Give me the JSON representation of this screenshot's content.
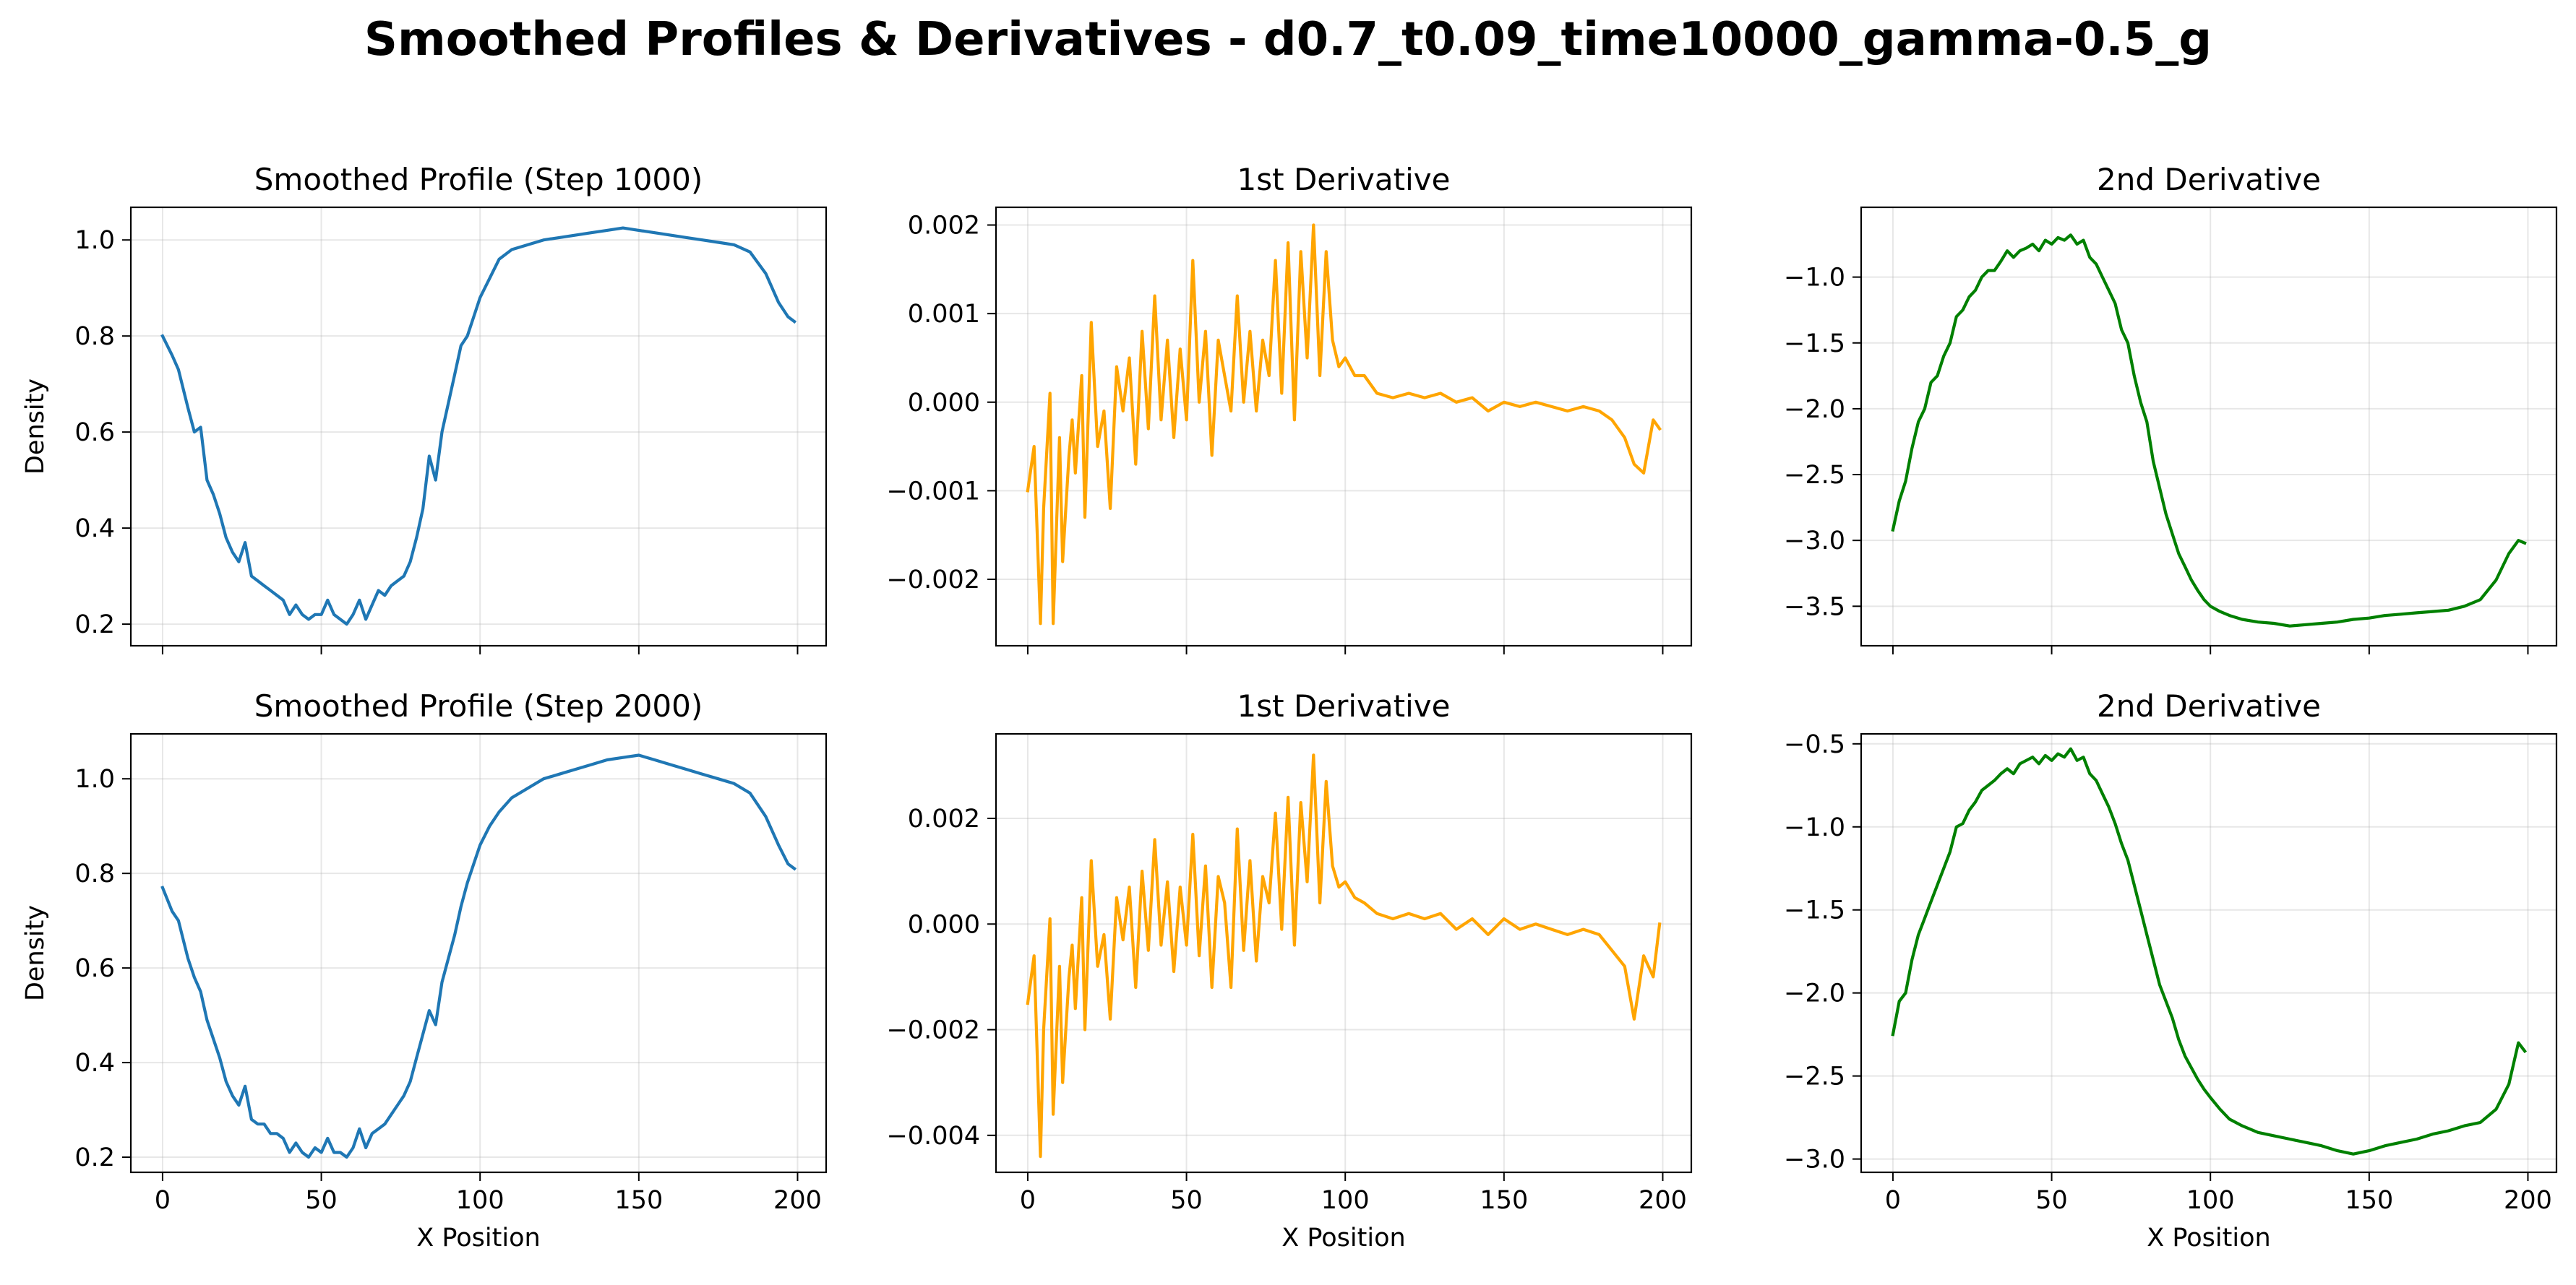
{
  "figure": {
    "suptitle": "Smoothed Profiles & Derivatives - d0.7_t0.09_time10000_gamma-0.5_g"
  },
  "chart_data": [
    {
      "type": "line",
      "title": "Smoothed Profile (Step 1000)",
      "xlabel": "",
      "ylabel": "Density",
      "xlim": [
        -10,
        209
      ],
      "ylim": [
        0.155,
        1.068
      ],
      "xticks": [
        0,
        50,
        100,
        150,
        200
      ],
      "yticks": [
        0.2,
        0.4,
        0.6,
        0.8,
        1.0
      ],
      "ytick_labels": [
        "0.2",
        "0.4",
        "0.6",
        "0.8",
        "1.0"
      ],
      "show_xtick_labels": false,
      "grid": true,
      "color": "#1f77b4",
      "x": [
        0,
        3,
        5,
        8,
        10,
        12,
        14,
        16,
        18,
        20,
        22,
        24,
        26,
        28,
        30,
        32,
        34,
        36,
        38,
        40,
        42,
        44,
        46,
        48,
        50,
        52,
        54,
        56,
        58,
        60,
        62,
        64,
        66,
        68,
        70,
        72,
        74,
        76,
        78,
        80,
        82,
        84,
        86,
        88,
        90,
        92,
        94,
        96,
        98,
        100,
        103,
        106,
        110,
        115,
        120,
        125,
        130,
        135,
        140,
        145,
        150,
        155,
        160,
        165,
        170,
        175,
        180,
        185,
        190,
        194,
        197,
        199
      ],
      "y": [
        0.8,
        0.76,
        0.73,
        0.65,
        0.6,
        0.61,
        0.5,
        0.47,
        0.43,
        0.38,
        0.35,
        0.33,
        0.37,
        0.3,
        0.29,
        0.28,
        0.27,
        0.26,
        0.25,
        0.22,
        0.24,
        0.22,
        0.21,
        0.22,
        0.22,
        0.25,
        0.22,
        0.21,
        0.2,
        0.22,
        0.25,
        0.21,
        0.24,
        0.27,
        0.26,
        0.28,
        0.29,
        0.3,
        0.33,
        0.38,
        0.44,
        0.55,
        0.5,
        0.6,
        0.66,
        0.72,
        0.78,
        0.8,
        0.84,
        0.88,
        0.92,
        0.96,
        0.98,
        0.99,
        1.0,
        1.005,
        1.01,
        1.015,
        1.02,
        1.025,
        1.02,
        1.015,
        1.01,
        1.005,
        1.0,
        0.995,
        0.99,
        0.975,
        0.93,
        0.87,
        0.84,
        0.83
      ]
    },
    {
      "type": "line",
      "title": "1st Derivative",
      "xlabel": "",
      "ylabel": "",
      "xlim": [
        -10,
        209
      ],
      "ylim": [
        -0.00275,
        0.0022
      ],
      "xticks": [
        0,
        50,
        100,
        150,
        200
      ],
      "yticks": [
        -0.002,
        -0.001,
        0.0,
        0.001,
        0.002
      ],
      "ytick_labels": [
        "−0.002",
        "−0.001",
        "0.000",
        "0.001",
        "0.002"
      ],
      "show_xtick_labels": false,
      "grid": true,
      "color": "#ffa500",
      "x": [
        0,
        2,
        4,
        5,
        7,
        8,
        10,
        11,
        13,
        14,
        15,
        17,
        18,
        20,
        22,
        24,
        26,
        28,
        30,
        32,
        34,
        36,
        38,
        40,
        42,
        44,
        46,
        48,
        50,
        52,
        54,
        56,
        58,
        60,
        62,
        64,
        66,
        68,
        70,
        72,
        74,
        76,
        78,
        80,
        82,
        84,
        86,
        88,
        90,
        92,
        94,
        96,
        98,
        100,
        103,
        106,
        110,
        115,
        120,
        125,
        130,
        135,
        140,
        145,
        150,
        155,
        160,
        165,
        170,
        175,
        180,
        184,
        188,
        191,
        194,
        197,
        199
      ],
      "y": [
        -0.001,
        -0.0005,
        -0.0025,
        -0.0012,
        0.0001,
        -0.0025,
        -0.0004,
        -0.0018,
        -0.0006,
        -0.0002,
        -0.0008,
        0.0003,
        -0.0013,
        0.0009,
        -0.0005,
        -0.0001,
        -0.0012,
        0.0004,
        -0.0001,
        0.0005,
        -0.0007,
        0.0008,
        -0.0003,
        0.0012,
        -0.0002,
        0.0007,
        -0.0004,
        0.0006,
        -0.0002,
        0.0016,
        0.0,
        0.0008,
        -0.0006,
        0.0007,
        0.0003,
        -0.0001,
        0.0012,
        0.0,
        0.0008,
        -0.0001,
        0.0007,
        0.0003,
        0.0016,
        0.0001,
        0.0018,
        -0.0002,
        0.0017,
        0.0005,
        0.002,
        0.0003,
        0.0017,
        0.0007,
        0.0004,
        0.0005,
        0.0003,
        0.0003,
        0.0001,
        5e-05,
        0.0001,
        5e-05,
        0.0001,
        0.0,
        5e-05,
        -0.0001,
        0.0,
        -5e-05,
        0.0,
        -5e-05,
        -0.0001,
        -5e-05,
        -0.0001,
        -0.0002,
        -0.0004,
        -0.0007,
        -0.0008,
        -0.0002,
        -0.0003
      ]
    },
    {
      "type": "line",
      "title": "2nd Derivative",
      "xlabel": "",
      "ylabel": "",
      "xlim": [
        -10,
        209
      ],
      "ylim": [
        -3.8,
        -0.47
      ],
      "xticks": [
        0,
        50,
        100,
        150,
        200
      ],
      "yticks": [
        -3.5,
        -3.0,
        -2.5,
        -2.0,
        -1.5,
        -1.0
      ],
      "ytick_labels": [
        "−3.5",
        "−3.0",
        "−2.5",
        "−2.0",
        "−1.5",
        "−1.0"
      ],
      "show_xtick_labels": false,
      "grid": true,
      "color": "#008000",
      "x": [
        0,
        2,
        4,
        6,
        8,
        10,
        12,
        14,
        16,
        18,
        20,
        22,
        24,
        26,
        28,
        30,
        32,
        34,
        36,
        38,
        40,
        42,
        44,
        46,
        48,
        50,
        52,
        54,
        56,
        58,
        60,
        62,
        64,
        66,
        68,
        70,
        72,
        74,
        76,
        78,
        80,
        82,
        84,
        86,
        88,
        90,
        92,
        94,
        96,
        98,
        100,
        103,
        106,
        110,
        115,
        120,
        125,
        130,
        135,
        140,
        145,
        150,
        155,
        160,
        165,
        170,
        175,
        180,
        185,
        190,
        194,
        197,
        199
      ],
      "y": [
        -2.92,
        -2.7,
        -2.55,
        -2.3,
        -2.1,
        -2.0,
        -1.8,
        -1.75,
        -1.6,
        -1.5,
        -1.3,
        -1.25,
        -1.15,
        -1.1,
        -1.0,
        -0.95,
        -0.95,
        -0.88,
        -0.8,
        -0.85,
        -0.8,
        -0.78,
        -0.75,
        -0.8,
        -0.72,
        -0.75,
        -0.7,
        -0.72,
        -0.68,
        -0.75,
        -0.72,
        -0.85,
        -0.9,
        -1.0,
        -1.1,
        -1.2,
        -1.4,
        -1.5,
        -1.75,
        -1.95,
        -2.1,
        -2.4,
        -2.6,
        -2.8,
        -2.95,
        -3.1,
        -3.2,
        -3.3,
        -3.38,
        -3.45,
        -3.5,
        -3.54,
        -3.57,
        -3.6,
        -3.62,
        -3.63,
        -3.65,
        -3.64,
        -3.63,
        -3.62,
        -3.6,
        -3.59,
        -3.57,
        -3.56,
        -3.55,
        -3.54,
        -3.53,
        -3.5,
        -3.45,
        -3.3,
        -3.1,
        -3.0,
        -3.02
      ]
    },
    {
      "type": "line",
      "title": "Smoothed Profile (Step 2000)",
      "xlabel": "X Position",
      "ylabel": "Density",
      "xlim": [
        -10,
        209
      ],
      "ylim": [
        0.168,
        1.095
      ],
      "xticks": [
        0,
        50,
        100,
        150,
        200
      ],
      "yticks": [
        0.2,
        0.4,
        0.6,
        0.8,
        1.0
      ],
      "ytick_labels": [
        "0.2",
        "0.4",
        "0.6",
        "0.8",
        "1.0"
      ],
      "show_xtick_labels": true,
      "grid": true,
      "color": "#1f77b4",
      "x": [
        0,
        3,
        5,
        8,
        10,
        12,
        14,
        16,
        18,
        20,
        22,
        24,
        26,
        28,
        30,
        32,
        34,
        36,
        38,
        40,
        42,
        44,
        46,
        48,
        50,
        52,
        54,
        56,
        58,
        60,
        62,
        64,
        66,
        68,
        70,
        72,
        74,
        76,
        78,
        80,
        82,
        84,
        86,
        88,
        90,
        92,
        94,
        96,
        98,
        100,
        103,
        106,
        110,
        115,
        120,
        125,
        130,
        135,
        140,
        145,
        150,
        155,
        160,
        165,
        170,
        175,
        180,
        185,
        190,
        194,
        197,
        199
      ],
      "y": [
        0.77,
        0.72,
        0.7,
        0.62,
        0.58,
        0.55,
        0.49,
        0.45,
        0.41,
        0.36,
        0.33,
        0.31,
        0.35,
        0.28,
        0.27,
        0.27,
        0.25,
        0.25,
        0.24,
        0.21,
        0.23,
        0.21,
        0.2,
        0.22,
        0.21,
        0.24,
        0.21,
        0.21,
        0.2,
        0.22,
        0.26,
        0.22,
        0.25,
        0.26,
        0.27,
        0.29,
        0.31,
        0.33,
        0.36,
        0.41,
        0.46,
        0.51,
        0.48,
        0.57,
        0.62,
        0.67,
        0.73,
        0.78,
        0.82,
        0.86,
        0.9,
        0.93,
        0.96,
        0.98,
        1.0,
        1.01,
        1.02,
        1.03,
        1.04,
        1.045,
        1.05,
        1.04,
        1.03,
        1.02,
        1.01,
        1.0,
        0.99,
        0.97,
        0.92,
        0.86,
        0.82,
        0.81
      ]
    },
    {
      "type": "line",
      "title": "1st Derivative",
      "xlabel": "X Position",
      "ylabel": "",
      "xlim": [
        -10,
        209
      ],
      "ylim": [
        -0.0047,
        0.0036
      ],
      "xticks": [
        0,
        50,
        100,
        150,
        200
      ],
      "yticks": [
        -0.004,
        -0.002,
        0.0,
        0.002
      ],
      "ytick_labels": [
        "−0.004",
        "−0.002",
        "0.000",
        "0.002"
      ],
      "show_xtick_labels": true,
      "grid": true,
      "color": "#ffa500",
      "x": [
        0,
        2,
        4,
        5,
        7,
        8,
        10,
        11,
        13,
        14,
        15,
        17,
        18,
        20,
        22,
        24,
        26,
        28,
        30,
        32,
        34,
        36,
        38,
        40,
        42,
        44,
        46,
        48,
        50,
        52,
        54,
        56,
        58,
        60,
        62,
        64,
        66,
        68,
        70,
        72,
        74,
        76,
        78,
        80,
        82,
        84,
        86,
        88,
        90,
        92,
        94,
        96,
        98,
        100,
        103,
        106,
        110,
        115,
        120,
        125,
        130,
        135,
        140,
        145,
        150,
        155,
        160,
        165,
        170,
        175,
        180,
        184,
        188,
        191,
        194,
        197,
        199
      ],
      "y": [
        -0.0015,
        -0.0006,
        -0.0044,
        -0.002,
        0.0001,
        -0.0036,
        -0.0008,
        -0.003,
        -0.001,
        -0.0004,
        -0.0016,
        0.0005,
        -0.002,
        0.0012,
        -0.0008,
        -0.0002,
        -0.0018,
        0.0005,
        -0.0003,
        0.0007,
        -0.0012,
        0.001,
        -0.0005,
        0.0016,
        -0.0004,
        0.0008,
        -0.0009,
        0.0007,
        -0.0004,
        0.0017,
        -0.0006,
        0.0011,
        -0.0012,
        0.0009,
        0.0004,
        -0.0012,
        0.0018,
        -0.0005,
        0.0012,
        -0.0007,
        0.0009,
        0.0004,
        0.0021,
        -0.0001,
        0.0024,
        -0.0004,
        0.0023,
        0.0008,
        0.0032,
        0.0004,
        0.0027,
        0.0011,
        0.0007,
        0.0008,
        0.0005,
        0.0004,
        0.0002,
        0.0001,
        0.0002,
        0.0001,
        0.0002,
        -0.0001,
        0.0001,
        -0.0002,
        0.0001,
        -0.0001,
        0.0,
        -0.0001,
        -0.0002,
        -0.0001,
        -0.0002,
        -0.0005,
        -0.0008,
        -0.0018,
        -0.0006,
        -0.001,
        0.0
      ]
    },
    {
      "type": "line",
      "title": "2nd Derivative",
      "xlabel": "X Position",
      "ylabel": "",
      "xlim": [
        -10,
        209
      ],
      "ylim": [
        -3.08,
        -0.44
      ],
      "xticks": [
        0,
        50,
        100,
        150,
        200
      ],
      "yticks": [
        -3.0,
        -2.5,
        -2.0,
        -1.5,
        -1.0,
        -0.5
      ],
      "ytick_labels": [
        "−3.0",
        "−2.5",
        "−2.0",
        "−1.5",
        "−1.0",
        "−0.5"
      ],
      "show_xtick_labels": true,
      "grid": true,
      "color": "#008000",
      "x": [
        0,
        2,
        4,
        6,
        8,
        10,
        12,
        14,
        16,
        18,
        20,
        22,
        24,
        26,
        28,
        30,
        32,
        34,
        36,
        38,
        40,
        42,
        44,
        46,
        48,
        50,
        52,
        54,
        56,
        58,
        60,
        62,
        64,
        66,
        68,
        70,
        72,
        74,
        76,
        78,
        80,
        82,
        84,
        86,
        88,
        90,
        92,
        94,
        96,
        98,
        100,
        103,
        106,
        110,
        115,
        120,
        125,
        130,
        135,
        140,
        145,
        150,
        155,
        160,
        165,
        170,
        175,
        180,
        185,
        190,
        194,
        197,
        199
      ],
      "y": [
        -2.25,
        -2.05,
        -2.0,
        -1.8,
        -1.65,
        -1.55,
        -1.45,
        -1.35,
        -1.25,
        -1.15,
        -1.0,
        -0.98,
        -0.9,
        -0.85,
        -0.78,
        -0.75,
        -0.72,
        -0.68,
        -0.65,
        -0.68,
        -0.62,
        -0.6,
        -0.58,
        -0.62,
        -0.57,
        -0.6,
        -0.56,
        -0.58,
        -0.53,
        -0.6,
        -0.58,
        -0.68,
        -0.72,
        -0.8,
        -0.88,
        -0.98,
        -1.1,
        -1.2,
        -1.35,
        -1.5,
        -1.65,
        -1.8,
        -1.95,
        -2.05,
        -2.15,
        -2.28,
        -2.38,
        -2.45,
        -2.52,
        -2.58,
        -2.63,
        -2.7,
        -2.76,
        -2.8,
        -2.84,
        -2.86,
        -2.88,
        -2.9,
        -2.92,
        -2.95,
        -2.97,
        -2.95,
        -2.92,
        -2.9,
        -2.88,
        -2.85,
        -2.83,
        -2.8,
        -2.78,
        -2.7,
        -2.55,
        -2.3,
        -2.35
      ]
    }
  ]
}
